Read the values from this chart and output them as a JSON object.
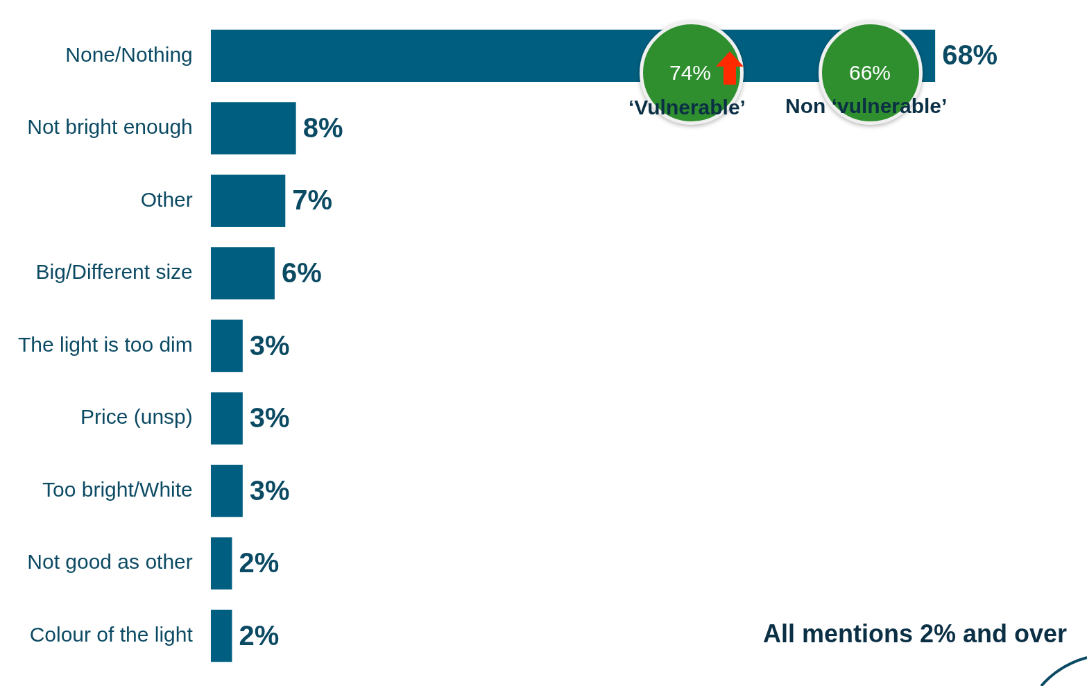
{
  "chart_data": {
    "type": "bar",
    "orientation": "horizontal",
    "categories": [
      "None/Nothing",
      "Not bright enough",
      "Other",
      "Big/Different size",
      "The light is too dim",
      "Price (unsp)",
      "Too bright/White",
      "Not good as other",
      "Colour of the light"
    ],
    "values": [
      68,
      8,
      7,
      6,
      3,
      3,
      3,
      2,
      2
    ],
    "value_labels": [
      "68%",
      "8%",
      "7%",
      "6%",
      "3%",
      "3%",
      "3%",
      "2%",
      "2%"
    ],
    "color": "#005f80",
    "annotations": [
      "74%",
      "‘Vulnerable’",
      "66%",
      "Non ‘vulnerable’",
      "All mentions 2% and over"
    ]
  }
}
